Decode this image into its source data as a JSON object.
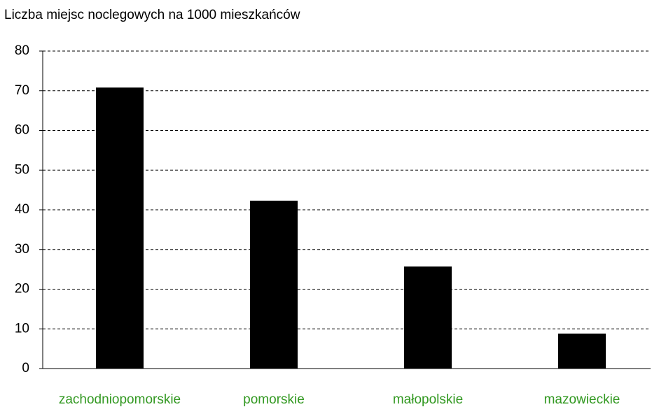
{
  "chart_data": {
    "type": "bar",
    "title": "Liczba miejsc noclegowych na 1000 mieszkańców",
    "categories": [
      "zachodniopomorskie",
      "pomorskie",
      "małopolskie",
      "mazowieckie"
    ],
    "values": [
      70.8,
      42.3,
      25.7,
      8.8
    ],
    "color": "#000000",
    "category_color": "#339922",
    "ylim": [
      0,
      80
    ],
    "yticks": [
      0,
      10,
      20,
      30,
      40,
      50,
      60,
      70,
      80
    ],
    "grid": true
  }
}
